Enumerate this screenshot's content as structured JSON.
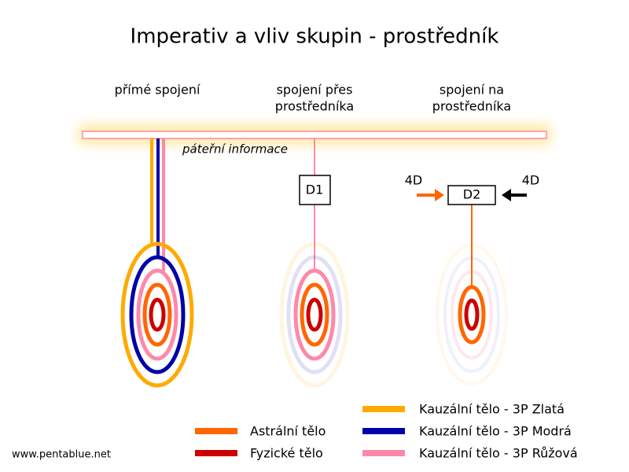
{
  "header": {
    "title": "Imperativ a vliv skupin - prostředník"
  },
  "columns": [
    {
      "label_lines": [
        "přímé spojení"
      ]
    },
    {
      "label_lines": [
        "spojení přes",
        "prostředníka"
      ],
      "box": "D1"
    },
    {
      "label_lines": [
        "spojení na",
        "prostředníka"
      ],
      "box": "D2",
      "left_input": "4D",
      "right_input": "4D"
    }
  ],
  "backbone": {
    "label": "páteřní informace"
  },
  "legend": {
    "items": [
      "Astrální tělo",
      "Fyzické tělo",
      "Kauzální tělo - 3P Zlatá",
      "Kauzální tělo - 3P Modrá",
      "Kauzální tělo - 3P Růžová"
    ]
  },
  "footer": {
    "url": "www.pentablue.net"
  }
}
